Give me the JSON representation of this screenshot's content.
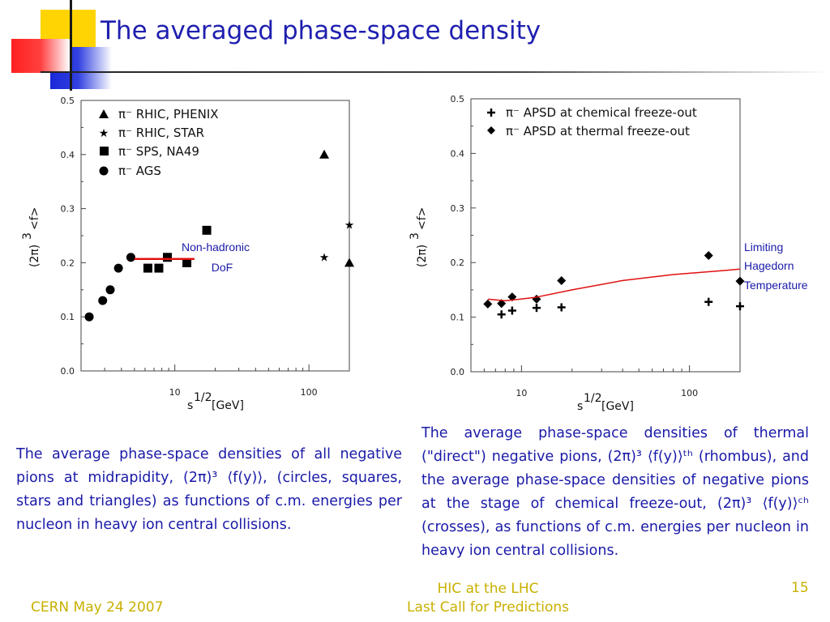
{
  "slide": {
    "title": "The averaged phase-space density",
    "caption_left": "The average phase-space densities of all negative pions at midrapidity, (2π)³ ⟨f(y)⟩, (circles, squares, stars and triangles) as functions of c.m. energies per nucleon in heavy ion central collisions.",
    "caption_right": "The average phase-space densities of thermal (\"direct\") negative pions, (2π)³ ⟨f(y)⟩ᵗʰ (rhombus), and the average phase-space densities of negative pions at the stage of chemical freeze-out, (2π)³ ⟨f(y)⟩ᶜʰ (crosses), as functions of c.m. energies per nucleon in heavy ion central collisions.",
    "footer_left": "CERN May 24 2007",
    "footer_center_line1": "HIC at the LHC",
    "footer_center_line2": "Last Call for Predictions",
    "page_number": "15",
    "accent_colors": {
      "title": "#1f1fb0",
      "footer": "#c8b000",
      "red": "#e01010",
      "yellow": "#ffd700",
      "blue": "#2030d0"
    }
  },
  "chart_data": [
    {
      "type": "scatter",
      "xscale": "log",
      "xlim": [
        2,
        200
      ],
      "ylim": [
        0,
        0.5
      ],
      "xticks": [
        "10",
        "100"
      ],
      "yticks": [
        "0.0",
        "0.1",
        "0.2",
        "0.3",
        "0.4",
        "0.5"
      ],
      "xlabel": "s^1/2 [GeV]",
      "xlabel_main": "s",
      "xlabel_sup": "1/2",
      "xlabel_unit": "[GeV]",
      "ylabel": "(2π)^3 <f>",
      "ylabel_main": "(2π)",
      "ylabel_sup": "3",
      "ylabel_rest": "<f>",
      "series": [
        {
          "name": "π⁻  RHIC, PHENIX",
          "marker": "triangle",
          "points": [
            [
              130,
              0.4
            ],
            [
              200,
              0.2
            ]
          ]
        },
        {
          "name": "π⁻  RHIC, STAR",
          "marker": "star",
          "points": [
            [
              130,
              0.21
            ],
            [
              200,
              0.27
            ]
          ]
        },
        {
          "name": "π⁻  SPS, NA49",
          "marker": "square",
          "points": [
            [
              6.3,
              0.19
            ],
            [
              7.6,
              0.19
            ],
            [
              8.8,
              0.21
            ],
            [
              12.3,
              0.2
            ],
            [
              17.3,
              0.26
            ]
          ]
        },
        {
          "name": "π⁻  AGS",
          "marker": "circle",
          "points": [
            [
              2.3,
              0.1
            ],
            [
              2.9,
              0.13
            ],
            [
              3.3,
              0.15
            ],
            [
              3.8,
              0.19
            ],
            [
              4.7,
              0.21
            ]
          ]
        }
      ],
      "lines": [
        {
          "label": "Non-hadronic DoF",
          "color": "#e01010",
          "points": [
            [
              5,
              0.207
            ],
            [
              14,
              0.207
            ]
          ]
        }
      ],
      "annotations": [
        {
          "text_line1": "Non-hadronic",
          "text_line2": "DoF"
        }
      ]
    },
    {
      "type": "scatter",
      "xscale": "log",
      "xlim": [
        5,
        200
      ],
      "ylim": [
        0,
        0.5
      ],
      "xticks": [
        "10",
        "100"
      ],
      "yticks": [
        "0.0",
        "0.1",
        "0.2",
        "0.3",
        "0.4",
        "0.5"
      ],
      "xlabel": "s^1/2 [GeV]",
      "xlabel_main": "s",
      "xlabel_sup": "1/2",
      "xlabel_unit": "[GeV]",
      "ylabel": "(2π)^3 <f>",
      "ylabel_main": "(2π)",
      "ylabel_sup": "3",
      "ylabel_rest": "<f>",
      "series": [
        {
          "name": "π⁻  APSD at chemical freeze-out",
          "marker": "plus",
          "points": [
            [
              7.6,
              0.105
            ],
            [
              8.8,
              0.112
            ],
            [
              12.3,
              0.117
            ],
            [
              17.3,
              0.118
            ],
            [
              130,
              0.128
            ],
            [
              200,
              0.12
            ]
          ]
        },
        {
          "name": "π⁻  APSD at thermal freeze-out",
          "marker": "diamond",
          "points": [
            [
              6.3,
              0.124
            ],
            [
              7.6,
              0.125
            ],
            [
              8.8,
              0.137
            ],
            [
              12.3,
              0.133
            ],
            [
              17.3,
              0.167
            ],
            [
              130,
              0.213
            ],
            [
              200,
              0.166
            ]
          ]
        }
      ],
      "lines": [
        {
          "label": "Limiting Hagedorn Temperature",
          "color": "#e01010",
          "points": [
            [
              6.3,
              0.133
            ],
            [
              8,
              0.13
            ],
            [
              12,
              0.136
            ],
            [
              20,
              0.15
            ],
            [
              40,
              0.167
            ],
            [
              80,
              0.178
            ],
            [
              140,
              0.184
            ],
            [
              200,
              0.188
            ]
          ]
        }
      ],
      "annotations": [
        {
          "text_line1": "Limiting",
          "text_line2": "Hagedorn",
          "text_line3": "Temperature"
        }
      ]
    }
  ]
}
